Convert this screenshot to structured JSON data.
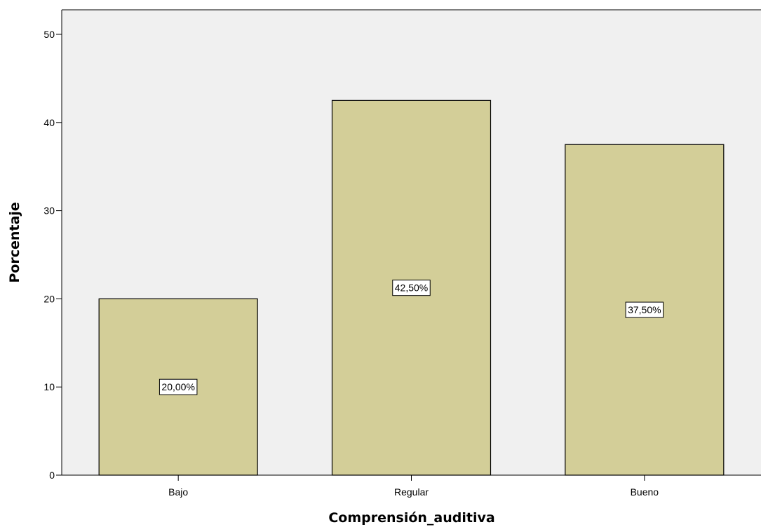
{
  "chart_data": {
    "type": "bar",
    "categories": [
      "Bajo",
      "Regular",
      "Bueno"
    ],
    "values": [
      20.0,
      42.5,
      37.5
    ],
    "data_labels": [
      "20,00%",
      "42,50%",
      "37,50%"
    ],
    "xlabel": "Comprensión_auditiva",
    "ylabel": "Porcentaje",
    "ylim": [
      0,
      50
    ],
    "yticks": [
      0,
      10,
      20,
      30,
      40,
      50
    ],
    "grid": false,
    "legend": "none",
    "colors": {
      "plot_background": "#f0f0f0",
      "bar_fill": "#d3ce98",
      "bar_stroke": "#000000",
      "label_box_fill": "#ffffff"
    }
  }
}
